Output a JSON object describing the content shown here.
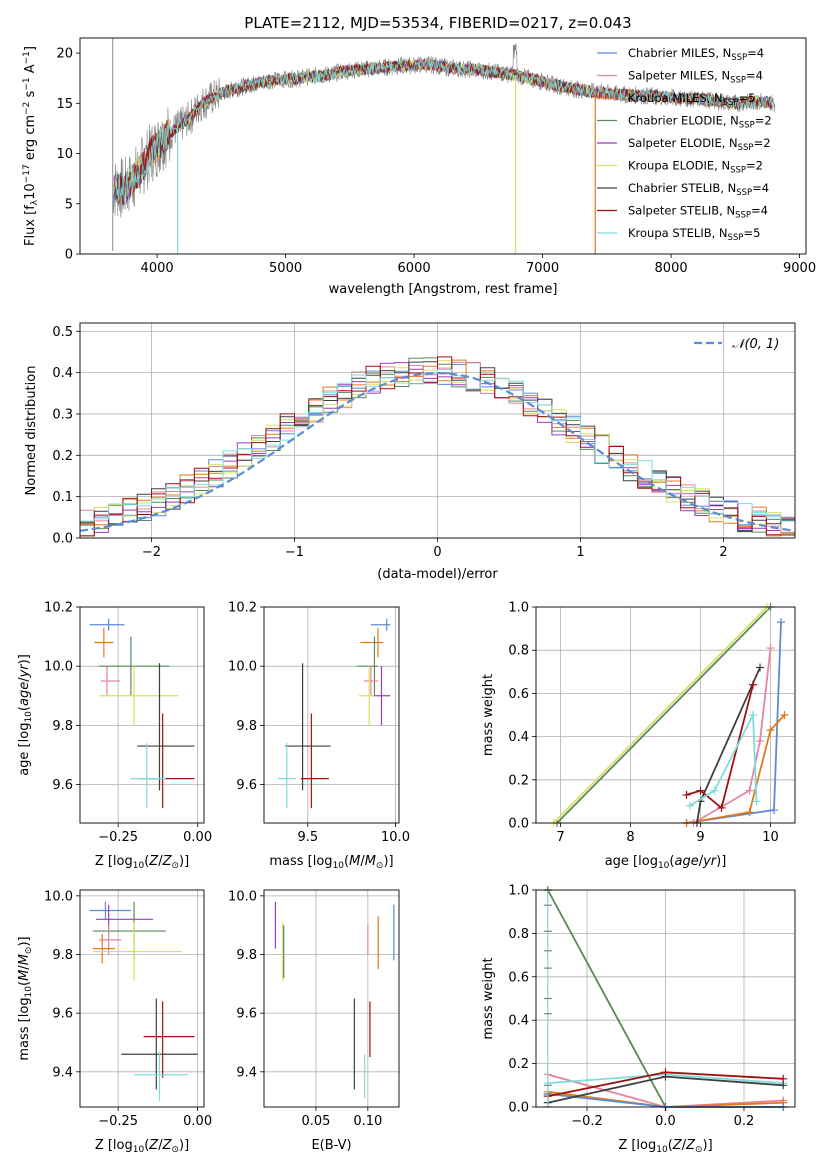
{
  "chart_data": [
    {
      "id": "spectrum",
      "type": "line",
      "title": "PLATE=2112, MJD=53534, FIBERID=0217, z=0.043",
      "xlabel": "wavelength [Angstrom, rest frame]",
      "ylabel": "Flux [f_λ10^-17 erg cm^-2 s^-1 A^-1]",
      "xlim": [
        3400,
        9050
      ],
      "ylim": [
        0,
        21.5
      ],
      "xticks": [
        4000,
        5000,
        6000,
        7000,
        8000,
        9000
      ],
      "yticks": [
        0,
        5,
        10,
        15,
        20
      ],
      "grid": false,
      "legend_position": "right",
      "observed_flux_color": "#808080",
      "series": [
        {
          "name": "Chabrier MILES, N_SSP=4",
          "color": "#5b8bd4"
        },
        {
          "name": "Salpeter MILES, N_SSP=4",
          "color": "#e5849c"
        },
        {
          "name": "Kroupa MILES, N_SSP=5",
          "color": "#e07b1c"
        },
        {
          "name": "Chabrier ELODIE, N_SSP=2",
          "color": "#5a8a5e"
        },
        {
          "name": "Salpeter ELODIE, N_SSP=2",
          "color": "#9b3bc4"
        },
        {
          "name": "Kroupa ELODIE, N_SSP=2",
          "color": "#d9e060"
        },
        {
          "name": "Chabrier STELIB, N_SSP=4",
          "color": "#404040"
        },
        {
          "name": "Salpeter STELIB, N_SSP=4",
          "color": "#a01010"
        },
        {
          "name": "Kroupa STELIB, N_SSP=5",
          "color": "#7fdcdc"
        }
      ],
      "continuum": {
        "x": [
          3650,
          3750,
          3850,
          3950,
          4050,
          4150,
          4250,
          4350,
          4500,
          4700,
          4900,
          5100,
          5300,
          5500,
          5700,
          5900,
          6100,
          6300,
          6500,
          6700,
          6900,
          7100,
          7300,
          7500,
          7700,
          7900,
          8100,
          8300,
          8500,
          8700,
          8800
        ],
        "y": [
          6.5,
          6.5,
          8.0,
          10.0,
          11.5,
          12.5,
          13.5,
          15.0,
          16.0,
          16.8,
          17.3,
          17.5,
          17.8,
          18.3,
          18.5,
          18.7,
          18.9,
          18.5,
          18.3,
          18.0,
          17.5,
          16.8,
          16.3,
          16.0,
          15.8,
          15.7,
          15.5,
          15.3,
          15.0,
          15.2,
          15.0
        ]
      },
      "dips": [
        {
          "x": 4160,
          "y": 0,
          "color": "#7fdcdc"
        },
        {
          "x": 6790,
          "y": 0,
          "color": "#d9e060"
        },
        {
          "x": 7410,
          "y": 0,
          "color": "#e07b1c"
        }
      ]
    },
    {
      "id": "residuals",
      "type": "histogram",
      "xlabel": "(data-model)/error",
      "ylabel": "Normed distribution",
      "xlim": [
        -2.5,
        2.5
      ],
      "ylim": [
        0,
        0.52
      ],
      "xticks": [
        -2,
        -1,
        0,
        1,
        2
      ],
      "yticks": [
        0,
        0.1,
        0.2,
        0.3,
        0.4,
        0.5
      ],
      "grid": true,
      "legend_position": "top-right",
      "reference_curve": {
        "name": "𝒩(0, 1)",
        "color": "#5b8bd4",
        "dash": "dashed"
      }
    },
    {
      "id": "age_vs_Z",
      "type": "errorbar",
      "xlabel": "Z [log10(Z/Z⊙)]",
      "ylabel": "age [log10(age/yr)]",
      "xlim": [
        -0.37,
        0.02
      ],
      "ylim": [
        9.47,
        10.2
      ],
      "xticks": [
        -0.25,
        0.0
      ],
      "xtick_labels": [
        "−0.25",
        "0.00"
      ],
      "yticks": [
        9.6,
        9.8,
        10.0,
        10.2
      ],
      "grid": true,
      "points": [
        {
          "x": -0.28,
          "y": 10.14,
          "xerr": [
            0.06,
            0.05
          ],
          "yerr": [
            0.02,
            0.02
          ],
          "color": "#5b8bd4"
        },
        {
          "x": -0.295,
          "y": 10.08,
          "xerr": [
            0.03,
            0.03
          ],
          "yerr": [
            0.05,
            0.05
          ],
          "color": "#e07b1c"
        },
        {
          "x": -0.21,
          "y": 10.0,
          "xerr": [
            0.1,
            0.12
          ],
          "yerr": [
            0.1,
            0.1
          ],
          "color": "#5a8a5e"
        },
        {
          "x": -0.285,
          "y": 9.95,
          "xerr": [
            0.02,
            0.04
          ],
          "yerr": [
            0.05,
            0.05
          ],
          "color": "#e5849c"
        },
        {
          "x": -0.2,
          "y": 9.9,
          "xerr": [
            0.11,
            0.14
          ],
          "yerr": [
            0.1,
            0.1
          ],
          "color": "#d9e060"
        },
        {
          "x": -0.12,
          "y": 9.73,
          "xerr": [
            0.07,
            0.11
          ],
          "yerr": [
            0.15,
            0.28
          ],
          "color": "#404040"
        },
        {
          "x": -0.11,
          "y": 9.62,
          "xerr": [
            0.07,
            0.1
          ],
          "yerr": [
            0.1,
            0.22
          ],
          "color": "#a01010"
        },
        {
          "x": -0.16,
          "y": 9.62,
          "xerr": [
            0.05,
            0.06
          ],
          "yerr": [
            0.1,
            0.12
          ],
          "color": "#7fdcdc"
        }
      ]
    },
    {
      "id": "age_vs_mass",
      "type": "errorbar",
      "xlabel": "mass [log10(M/M⊙)]",
      "ylabel": "",
      "xlim": [
        9.25,
        10.02
      ],
      "ylim": [
        9.47,
        10.2
      ],
      "xticks": [
        9.5,
        10.0
      ],
      "xtick_labels": [
        "9.5",
        "10.0"
      ],
      "yticks": [
        9.6,
        9.8,
        10.0,
        10.2
      ],
      "grid": true,
      "points": [
        {
          "x": 9.95,
          "y": 10.14,
          "xerr": [
            0.09,
            0.02
          ],
          "yerr": [
            0.02,
            0.02
          ],
          "color": "#5b8bd4"
        },
        {
          "x": 9.9,
          "y": 10.08,
          "xerr": [
            0.1,
            0.03
          ],
          "yerr": [
            0.05,
            0.05
          ],
          "color": "#e07b1c"
        },
        {
          "x": 9.88,
          "y": 10.0,
          "xerr": [
            0.1,
            0.02
          ],
          "yerr": [
            0.1,
            0.1
          ],
          "color": "#5a8a5e"
        },
        {
          "x": 9.92,
          "y": 9.9,
          "xerr": [
            0.05,
            0.05
          ],
          "yerr": [
            0.1,
            0.1
          ],
          "color": "#9b3bc4"
        },
        {
          "x": 9.86,
          "y": 9.95,
          "xerr": [
            0.04,
            0.04
          ],
          "yerr": [
            0.05,
            0.05
          ],
          "color": "#e5849c"
        },
        {
          "x": 9.85,
          "y": 9.9,
          "xerr": [
            0.06,
            0.03
          ],
          "yerr": [
            0.1,
            0.1
          ],
          "color": "#d9e060"
        },
        {
          "x": 9.47,
          "y": 9.73,
          "xerr": [
            0.1,
            0.16
          ],
          "yerr": [
            0.15,
            0.28
          ],
          "color": "#404040"
        },
        {
          "x": 9.52,
          "y": 9.62,
          "xerr": [
            0.06,
            0.1
          ],
          "yerr": [
            0.1,
            0.22
          ],
          "color": "#a01010"
        },
        {
          "x": 9.38,
          "y": 9.62,
          "xerr": [
            0.05,
            0.05
          ],
          "yerr": [
            0.1,
            0.12
          ],
          "color": "#7fdcdc"
        }
      ]
    },
    {
      "id": "massweight_vs_age",
      "type": "line",
      "xlabel": "age [log10(age/yr)]",
      "ylabel": "mass weight",
      "xlim": [
        6.65,
        10.35
      ],
      "ylim": [
        0,
        1.0
      ],
      "xticks": [
        7,
        8,
        9,
        10
      ],
      "yticks": [
        0,
        0.2,
        0.4,
        0.6,
        0.8,
        1.0
      ],
      "grid": true,
      "series": [
        {
          "color": "#5b8bd4",
          "x": [
            8.8,
            10.05,
            10.15
          ],
          "y": [
            0.0,
            0.06,
            0.93
          ]
        },
        {
          "color": "#e07b1c",
          "x": [
            8.8,
            9.7,
            10.0,
            10.2
          ],
          "y": [
            0.0,
            0.05,
            0.43,
            0.5
          ]
        },
        {
          "color": "#e5849c",
          "x": [
            8.9,
            9.7,
            9.85,
            10.0
          ],
          "y": [
            0.0,
            0.15,
            0.38,
            0.81
          ]
        },
        {
          "color": "#5a8a5e",
          "x": [
            6.95,
            10.0
          ],
          "y": [
            0.0,
            1.0
          ]
        },
        {
          "color": "#d9e060",
          "x": [
            6.9,
            9.95
          ],
          "y": [
            0.0,
            1.0
          ]
        },
        {
          "color": "#404040",
          "x": [
            8.95,
            9.0,
            9.85
          ],
          "y": [
            0.0,
            0.1,
            0.72
          ]
        },
        {
          "color": "#a01010",
          "x": [
            8.8,
            9.0,
            9.3,
            9.75
          ],
          "y": [
            0.13,
            0.15,
            0.07,
            0.64
          ]
        },
        {
          "color": "#7fdcdc",
          "x": [
            8.85,
            9.2,
            9.75,
            9.8
          ],
          "y": [
            0.08,
            0.15,
            0.5,
            0.1
          ]
        }
      ]
    },
    {
      "id": "mass_vs_Z",
      "type": "errorbar",
      "xlabel": "Z [log10(Z/Z⊙)]",
      "ylabel": "mass [log10(M/M⊙)]",
      "xlim": [
        -0.37,
        0.02
      ],
      "ylim": [
        9.28,
        10.02
      ],
      "xticks": [
        -0.25,
        0.0
      ],
      "xtick_labels": [
        "−0.25",
        "0.00"
      ],
      "yticks": [
        9.4,
        9.6,
        9.8,
        10.0
      ],
      "grid": true,
      "points": [
        {
          "x": -0.29,
          "y": 9.95,
          "xerr": [
            0.05,
            0.08
          ],
          "yerr": [
            0.03,
            0.03
          ],
          "color": "#5b8bd4"
        },
        {
          "x": -0.28,
          "y": 9.92,
          "xerr": [
            0.04,
            0.14
          ],
          "yerr": [
            0.05,
            0.05
          ],
          "color": "#9b3bc4"
        },
        {
          "x": -0.2,
          "y": 9.88,
          "xerr": [
            0.13,
            0.1
          ],
          "yerr": [
            0.1,
            0.1
          ],
          "color": "#5a8a5e"
        },
        {
          "x": -0.28,
          "y": 9.85,
          "xerr": [
            0.03,
            0.04
          ],
          "yerr": [
            0.05,
            0.05
          ],
          "color": "#e5849c"
        },
        {
          "x": -0.3,
          "y": 9.82,
          "xerr": [
            0.03,
            0.04
          ],
          "yerr": [
            0.05,
            0.05
          ],
          "color": "#e07b1c"
        },
        {
          "x": -0.2,
          "y": 9.81,
          "xerr": [
            0.13,
            0.15
          ],
          "yerr": [
            0.1,
            0.1
          ],
          "color": "#d9e060"
        },
        {
          "x": -0.13,
          "y": 9.46,
          "xerr": [
            0.11,
            0.13
          ],
          "yerr": [
            0.12,
            0.19
          ],
          "color": "#404040"
        },
        {
          "x": -0.11,
          "y": 9.52,
          "xerr": [
            0.06,
            0.1
          ],
          "yerr": [
            0.14,
            0.12
          ],
          "color": "#a01010"
        },
        {
          "x": -0.12,
          "y": 9.39,
          "xerr": [
            0.08,
            0.09
          ],
          "yerr": [
            0.09,
            0.08
          ],
          "color": "#7fdcdc"
        }
      ]
    },
    {
      "id": "mass_vs_EBV",
      "type": "errorbar",
      "xlabel": "E(B-V)",
      "ylabel": "",
      "xlim": [
        0.0,
        0.13
      ],
      "ylim": [
        9.28,
        10.02
      ],
      "xticks": [
        0.05,
        0.1
      ],
      "xtick_labels": [
        "0.05",
        "0.10"
      ],
      "yticks": [
        9.4,
        9.6,
        9.8,
        10.0
      ],
      "grid": true,
      "points": [
        {
          "x": 0.011,
          "y": 9.9,
          "yerr": [
            0.08,
            0.08
          ],
          "color": "#9b3bc4"
        },
        {
          "x": 0.018,
          "y": 9.81,
          "yerr": [
            0.1,
            0.1
          ],
          "color": "#d9e060"
        },
        {
          "x": 0.019,
          "y": 9.82,
          "yerr": [
            0.1,
            0.08
          ],
          "color": "#5a8a5e"
        },
        {
          "x": 0.1,
          "y": 9.85,
          "yerr": [
            0.05,
            0.05
          ],
          "color": "#e5849c"
        },
        {
          "x": 0.11,
          "y": 9.82,
          "yerr": [
            0.07,
            0.11
          ],
          "color": "#e07b1c"
        },
        {
          "x": 0.125,
          "y": 9.87,
          "yerr": [
            0.09,
            0.1
          ],
          "color": "#5b8bd4"
        },
        {
          "x": 0.087,
          "y": 9.48,
          "yerr": [
            0.14,
            0.17
          ],
          "color": "#404040"
        },
        {
          "x": 0.102,
          "y": 9.52,
          "yerr": [
            0.07,
            0.12
          ],
          "color": "#a01010"
        },
        {
          "x": 0.097,
          "y": 9.38,
          "yerr": [
            0.07,
            0.08
          ],
          "color": "#7fdcdc"
        }
      ]
    },
    {
      "id": "massweight_vs_Z",
      "type": "line",
      "xlabel": "Z [log10(Z/Z⊙)]",
      "ylabel": "mass weight",
      "xlim": [
        -0.33,
        0.33
      ],
      "ylim": [
        0,
        1.0
      ],
      "xticks": [
        -0.2,
        0.0,
        0.2
      ],
      "xtick_labels": [
        "−0.2",
        "0.0",
        "0.2"
      ],
      "yticks": [
        0,
        0.2,
        0.4,
        0.6,
        0.8,
        1.0
      ],
      "grid": true,
      "series": [
        {
          "color": "#d9e060",
          "x": [
            -0.3,
            0.0,
            0.3
          ],
          "y": [
            1.0,
            0.0,
            0.0
          ]
        },
        {
          "color": "#5a8a5e",
          "x": [
            -0.3,
            0.0,
            0.3
          ],
          "y": [
            1.0,
            0.0,
            0.0
          ]
        },
        {
          "color": "#e5849c",
          "x": [
            -0.3,
            0.0,
            0.3
          ],
          "y": [
            0.15,
            0.0,
            0.03
          ]
        },
        {
          "color": "#e07b1c",
          "x": [
            -0.3,
            0.0,
            0.3
          ],
          "y": [
            0.07,
            0.0,
            0.02
          ]
        },
        {
          "color": "#5b8bd4",
          "x": [
            -0.3,
            0.0,
            0.3
          ],
          "y": [
            0.06,
            0.0,
            0.0
          ]
        },
        {
          "color": "#7fdcdc",
          "x": [
            -0.3,
            0.0,
            0.3
          ],
          "y": [
            0.11,
            0.15,
            0.11
          ]
        },
        {
          "color": "#404040",
          "x": [
            -0.3,
            0.0,
            0.3
          ],
          "y": [
            0.02,
            0.14,
            0.1
          ]
        },
        {
          "color": "#a01010",
          "x": [
            -0.3,
            0.0,
            0.3
          ],
          "y": [
            0.05,
            0.16,
            0.13
          ]
        }
      ],
      "vertical_stack": {
        "x": -0.3,
        "y": [
          0.0,
          0.06,
          0.1,
          0.43,
          0.5,
          0.64,
          0.72,
          0.81,
          0.93,
          1.0
        ]
      }
    }
  ]
}
